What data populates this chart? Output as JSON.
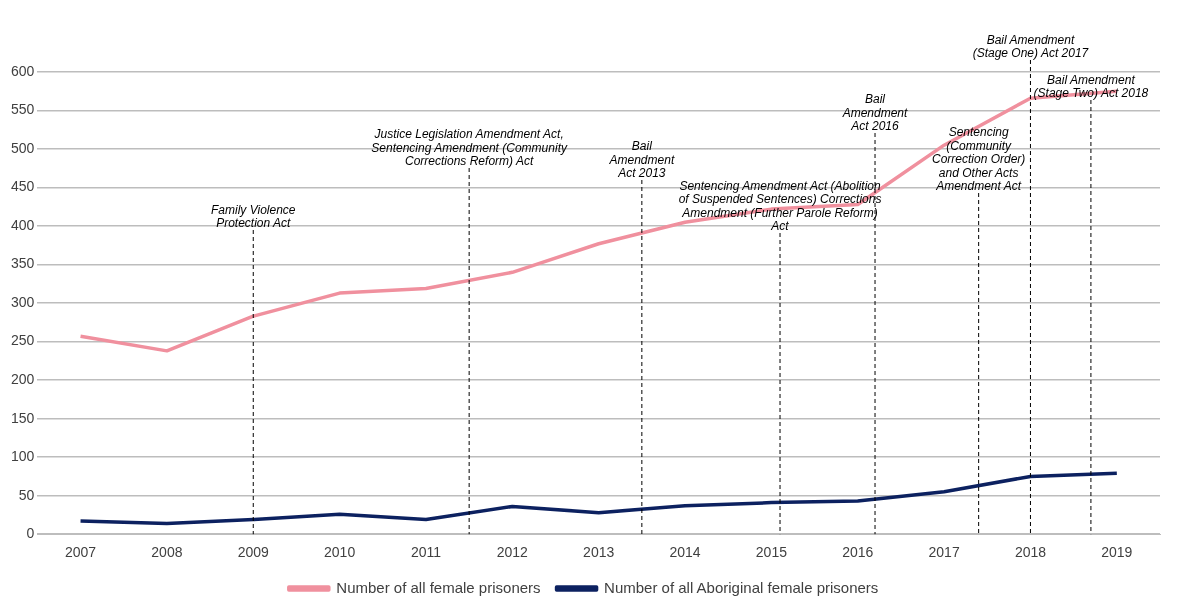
{
  "chart_data": {
    "type": "line",
    "x": [
      2007,
      2008,
      2009,
      2010,
      2011,
      2012,
      2013,
      2014,
      2015,
      2016,
      2017,
      2018,
      2019
    ],
    "xlim": [
      2006.5,
      2019.5
    ],
    "xticks": [
      2007,
      2008,
      2009,
      2010,
      2011,
      2012,
      2013,
      2014,
      2015,
      2016,
      2017,
      2018,
      2019
    ],
    "ylim": [
      0,
      600
    ],
    "yticks": [
      0,
      50,
      100,
      150,
      200,
      250,
      300,
      350,
      400,
      450,
      500,
      550,
      600
    ],
    "series": [
      {
        "name": "Number of all female prisoners",
        "color": "#f0909e",
        "values": [
          257,
          238,
          283,
          313,
          319,
          340,
          377,
          405,
          422,
          428,
          505,
          566,
          575
        ]
      },
      {
        "name": "Number of all Aboriginal female prisoners",
        "color": "#0c2160",
        "values": [
          17,
          14,
          19,
          26,
          19,
          36,
          28,
          37,
          41,
          43,
          55,
          75,
          79
        ]
      }
    ],
    "ref_lines": [
      {
        "axis": "x",
        "value": 2009,
        "label": "Family Violence Protection Act",
        "color": "#000000",
        "line_style": "dashed"
      },
      {
        "axis": "x",
        "value": 2011.5,
        "label": "Justice Legislation Amendment Act, Sentencing Amendment (Community Corrections Reform) Act",
        "color": "#000000",
        "line_style": "dashed"
      },
      {
        "axis": "x",
        "value": 2013.5,
        "label": "Bail Amendment Act 2013",
        "color": "#000000",
        "line_style": "dashed"
      },
      {
        "axis": "x",
        "value": 2015.1,
        "label": "Sentencing Amendment Act (Abolition of Suspended Sentences) Corrections Amendment (Further Parole Reform) Act",
        "color": "#000000",
        "line_style": "dashed"
      },
      {
        "axis": "x",
        "value": 2016.2,
        "label": "Bail Amendment Act 2016",
        "color": "#000000",
        "line_style": "dashed"
      },
      {
        "axis": "x",
        "value": 2017.4,
        "label": "Sentencing (Community Correction Order) and Other Acts Amendment Act",
        "color": "#000000",
        "line_style": "dashed"
      },
      {
        "axis": "x",
        "value": 2018,
        "label": "Bail Amendment (Stage One) Act 2017",
        "color": "#000000",
        "line_style": "dashed"
      },
      {
        "axis": "x",
        "value": 2018.7,
        "label": "Bail Amendment (Stage Two) Act 2018",
        "color": "#000000",
        "line_style": "dashed"
      }
    ],
    "grid": "y",
    "legend": "bottom",
    "marker": "none",
    "line_style": "solid"
  }
}
